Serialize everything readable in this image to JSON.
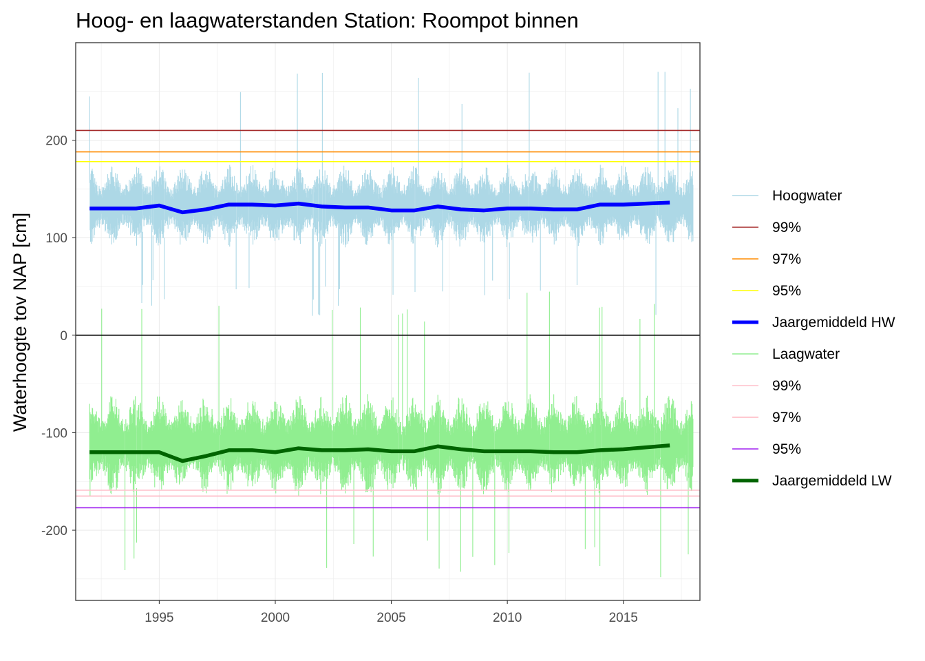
{
  "chart_data": {
    "type": "line",
    "title": "Hoog- en laagwaterstanden Station: Roompot binnen",
    "xlabel": "",
    "ylabel": "Waterhoogte tov NAP [cm]",
    "xlim": [
      1991.4,
      2018.3
    ],
    "ylim": [
      -272,
      300
    ],
    "x_ticks": [
      1995,
      2000,
      2005,
      2010,
      2015
    ],
    "y_ticks": [
      -200,
      -100,
      0,
      100,
      200
    ],
    "y_tick_labels": [
      "-200",
      "-100",
      "0",
      "100",
      "200"
    ],
    "grid": true,
    "legend_position": "right",
    "zero_line": 0,
    "hw_series": {
      "name": "Hoogwater",
      "color": "#add8e6",
      "x_range": [
        1992.0,
        2018.0
      ],
      "typical_range": [
        90,
        175
      ],
      "extreme_min": 18,
      "extreme_max": 272
    },
    "lw_series": {
      "name": "Laagwater",
      "color": "#90ee90",
      "x_range": [
        1992.0,
        2018.0
      ],
      "typical_range": [
        -165,
        -60
      ],
      "extreme_min": -250,
      "extreme_max": 50
    },
    "hw_percentiles": [
      {
        "name": "99%",
        "value": 210,
        "color": "#a52a2a"
      },
      {
        "name": "97%",
        "value": 188,
        "color": "#ff8c00"
      },
      {
        "name": "95%",
        "value": 178,
        "color": "#ffff00"
      }
    ],
    "lw_percentiles": [
      {
        "name": "99%",
        "value": -159,
        "color": "#ffc0cb"
      },
      {
        "name": "97%",
        "value": -165,
        "color": "#ffb6c1"
      },
      {
        "name": "95%",
        "value": -177,
        "color": "#a020f0"
      }
    ],
    "annual_mean_hw": {
      "name": "Jaargemiddeld HW",
      "color": "#0000ff",
      "x": [
        1992,
        1993,
        1994,
        1995,
        1996,
        1997,
        1998,
        1999,
        2000,
        2001,
        2002,
        2003,
        2004,
        2005,
        2006,
        2007,
        2008,
        2009,
        2010,
        2011,
        2012,
        2013,
        2014,
        2015,
        2016,
        2017
      ],
      "values": [
        130,
        130,
        130,
        133,
        126,
        129,
        134,
        134,
        133,
        135,
        132,
        131,
        131,
        128,
        128,
        132,
        129,
        128,
        130,
        130,
        129,
        129,
        134,
        134,
        135,
        136
      ]
    },
    "annual_mean_lw": {
      "name": "Jaargemiddeld LW",
      "color": "#006400",
      "x": [
        1992,
        1993,
        1994,
        1995,
        1996,
        1997,
        1998,
        1999,
        2000,
        2001,
        2002,
        2003,
        2004,
        2005,
        2006,
        2007,
        2008,
        2009,
        2010,
        2011,
        2012,
        2013,
        2014,
        2015,
        2016,
        2017
      ],
      "values": [
        -120,
        -120,
        -120,
        -120,
        -129,
        -124,
        -118,
        -118,
        -120,
        -116,
        -118,
        -118,
        -117,
        -119,
        -119,
        -114,
        -117,
        -119,
        -119,
        -119,
        -120,
        -120,
        -118,
        -117,
        -115,
        -113
      ]
    },
    "legend": [
      {
        "label": "Hoogwater",
        "color": "#add8e6",
        "width": 1.5
      },
      {
        "label": "99%",
        "color": "#a52a2a",
        "width": 1.5
      },
      {
        "label": "97%",
        "color": "#ff8c00",
        "width": 1.5
      },
      {
        "label": "95%",
        "color": "#ffff00",
        "width": 1.5
      },
      {
        "label": "Jaargemiddeld HW",
        "color": "#0000ff",
        "width": 5
      },
      {
        "label": "Laagwater",
        "color": "#90ee90",
        "width": 1.5
      },
      {
        "label": "99%",
        "color": "#ffc0cb",
        "width": 1.5
      },
      {
        "label": "97%",
        "color": "#ffb6c1",
        "width": 1.5
      },
      {
        "label": "95%",
        "color": "#a020f0",
        "width": 1.5
      },
      {
        "label": "Jaargemiddeld LW",
        "color": "#006400",
        "width": 5
      }
    ]
  }
}
